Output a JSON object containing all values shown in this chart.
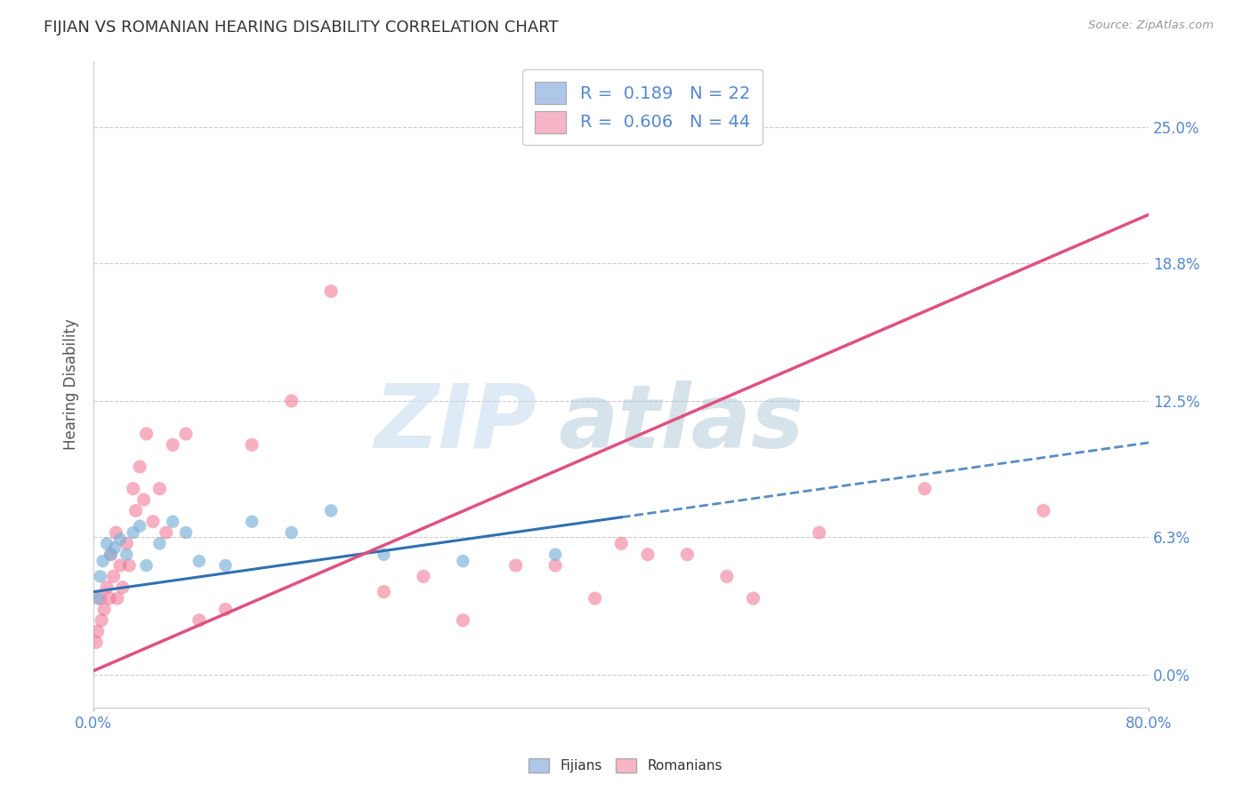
{
  "title": "FIJIAN VS ROMANIAN HEARING DISABILITY CORRELATION CHART",
  "source": "Source: ZipAtlas.com",
  "ylabel": "Hearing Disability",
  "ytick_values": [
    0.0,
    6.3,
    12.5,
    18.8,
    25.0
  ],
  "xmin": 0.0,
  "xmax": 80.0,
  "ymin": -1.5,
  "ymax": 28.0,
  "fijian_patch_color": "#aec6e8",
  "fijian_scatter_color": "#7ab0d8",
  "romanian_patch_color": "#f7b6c8",
  "romanian_scatter_color": "#f07090",
  "fijian_R": 0.189,
  "fijian_N": 22,
  "romanian_R": 0.606,
  "romanian_N": 44,
  "fijian_line_color": "#3070b0",
  "romanian_line_color": "#e05080",
  "tick_color": "#5588cc",
  "title_color": "#333333",
  "source_color": "#999999",
  "grid_color": "#cccccc",
  "watermark_zip_color": "#c8ddf0",
  "watermark_atlas_color": "#b0c8d8",
  "fijian_trend_x0": 0.0,
  "fijian_trend_y0": 3.8,
  "fijian_trend_x1": 40.0,
  "fijian_trend_y1": 7.2,
  "fijian_dash_x0": 0.0,
  "fijian_dash_y0": 3.8,
  "fijian_dash_x1": 80.0,
  "fijian_dash_y1": 10.6,
  "romanian_trend_x0": 0.0,
  "romanian_trend_y0": 0.2,
  "romanian_trend_x1": 80.0,
  "romanian_trend_y1": 21.0,
  "fijian_points_x": [
    0.3,
    0.5,
    0.7,
    1.0,
    1.3,
    1.6,
    2.0,
    2.5,
    3.0,
    3.5,
    4.0,
    5.0,
    6.0,
    7.0,
    8.0,
    10.0,
    12.0,
    15.0,
    18.0,
    22.0,
    28.0,
    35.0
  ],
  "fijian_points_y": [
    3.5,
    4.5,
    5.2,
    6.0,
    5.5,
    5.8,
    6.2,
    5.5,
    6.5,
    6.8,
    5.0,
    6.0,
    7.0,
    6.5,
    5.2,
    5.0,
    7.0,
    6.5,
    7.5,
    5.5,
    5.2,
    5.5
  ],
  "romanian_points_x": [
    0.2,
    0.3,
    0.5,
    0.6,
    0.8,
    1.0,
    1.2,
    1.3,
    1.5,
    1.7,
    1.8,
    2.0,
    2.2,
    2.5,
    2.7,
    3.0,
    3.2,
    3.5,
    3.8,
    4.0,
    4.5,
    5.0,
    5.5,
    6.0,
    7.0,
    8.0,
    10.0,
    12.0,
    15.0,
    18.0,
    22.0,
    25.0,
    28.0,
    32.0,
    35.0,
    38.0,
    40.0,
    42.0,
    45.0,
    48.0,
    50.0,
    55.0,
    63.0,
    72.0
  ],
  "romanian_points_y": [
    1.5,
    2.0,
    3.5,
    2.5,
    3.0,
    4.0,
    3.5,
    5.5,
    4.5,
    6.5,
    3.5,
    5.0,
    4.0,
    6.0,
    5.0,
    8.5,
    7.5,
    9.5,
    8.0,
    11.0,
    7.0,
    8.5,
    6.5,
    10.5,
    11.0,
    2.5,
    3.0,
    10.5,
    12.5,
    17.5,
    3.8,
    4.5,
    2.5,
    5.0,
    5.0,
    3.5,
    6.0,
    5.5,
    5.5,
    4.5,
    3.5,
    6.5,
    8.5,
    7.5
  ]
}
